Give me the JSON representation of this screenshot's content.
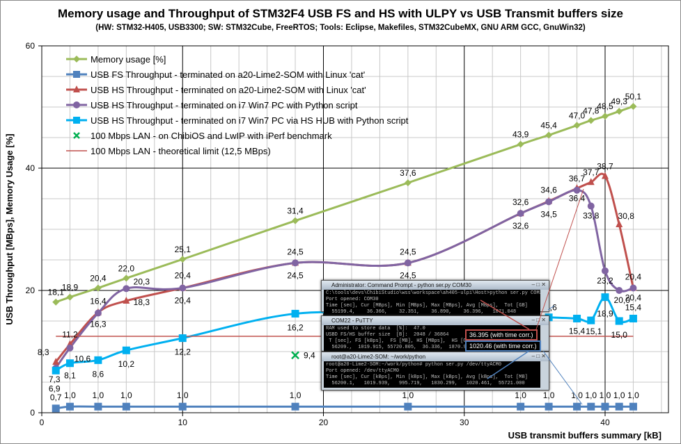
{
  "chart_data": {
    "type": "line",
    "title": "Memory usage and Throughput of STM32F4 USB FS and HS with ULPY vs USB Transmit buffers size",
    "subtitle": "(HW: STM32-H405, USB3300; SW: STM32Cube, FreeRTOS; Tools: Eclipse, Makefiles, STM32CubeMX, GNU ARM GCC, GnuWin32)",
    "xlabel": "USB transmit buffers summary [kB]",
    "ylabel": "USB Throughput [MBps], Memory Usage [%]",
    "xlim": [
      0,
      44.5
    ],
    "ylim": [
      0,
      60
    ],
    "xticks": [
      0,
      10,
      20,
      30,
      40
    ],
    "yticks": [
      0,
      20,
      40,
      60
    ],
    "grid": true,
    "legend_placement": "top-left",
    "x": [
      1,
      2,
      4,
      6,
      10,
      18,
      26,
      34,
      36,
      38,
      39,
      40,
      41,
      42
    ],
    "series": [
      {
        "name": "Memory usage [%]",
        "color": "#9bbb59",
        "marker": "diamond",
        "values": [
          18.1,
          18.9,
          20.4,
          22.0,
          25.1,
          31.4,
          37.6,
          43.9,
          45.4,
          47.0,
          47.8,
          48.5,
          49.3,
          50.1
        ]
      },
      {
        "name": "USB FS Throughput - terminated on a20-Lime2-SOM with Linux 'cat'",
        "color": "#4f81bd",
        "marker": "square",
        "values": [
          0.7,
          1.0,
          1.0,
          1.0,
          1.0,
          1.0,
          1.0,
          1.0,
          1.0,
          1.0,
          1.0,
          1.0,
          1.0,
          1.0
        ]
      },
      {
        "name": "USB HS Throughput - terminated on a20-Lime2-SOM with Linux 'cat'",
        "color": "#c0504d",
        "marker": "triangle",
        "values": [
          8.3,
          11.2,
          16.4,
          18.3,
          20.4,
          24.5,
          24.5,
          32.6,
          34.6,
          36.7,
          37.7,
          38.7,
          30.8,
          20.4
        ]
      },
      {
        "name": "USB HS Throughput - terminated on i7 Win7 PC with Python script",
        "color": "#8064a2",
        "marker": "circle",
        "values": [
          7.3,
          10.6,
          16.3,
          20.3,
          20.4,
          24.5,
          24.5,
          32.6,
          34.5,
          36.4,
          33.8,
          23.2,
          20.0,
          20.4
        ]
      },
      {
        "name": "USB HS Throughput - terminated on i7 Win7 PC via HS HUB with Python script",
        "color": "#00b0f0",
        "marker": "square",
        "values": [
          6.9,
          8.1,
          8.6,
          10.2,
          12.2,
          16.2,
          16.0,
          15.7,
          15.6,
          15.4,
          15.1,
          18.9,
          15.0,
          15.4
        ]
      },
      {
        "name": "100 Mbps LAN - on ChibiOS and LwIP with iPerf benchmark",
        "color": "#00b050",
        "marker": "x",
        "points": [
          {
            "x": 18,
            "y": 9.4
          }
        ]
      },
      {
        "name": "100 Mbps LAN - theoretical limit (12,5 MBps)",
        "color": "#c0504d",
        "marker": "none",
        "points": [
          {
            "x": 1,
            "y": 12.5
          },
          {
            "x": 42,
            "y": 12.5
          }
        ]
      }
    ]
  },
  "inset": {
    "win1": {
      "title": "Administrator: Command Prompt - python  ser.py COM30",
      "lines": [
        "C:\\tools\\devs\\ChibiStudio\\wss\\workspace\\ah405-ulpi\\Host>python ser.py COM30",
        "Port opened: COM30",
        "Time [sec], Cur [MBps], Min [MBps], Max [MBps], Avg [MBps],  Tot [GB]",
        "  55199.4,    36.366,    32.351,    36.890,    36.396,   1871.048"
      ]
    },
    "win2": {
      "title": "COM22 - PuTTY",
      "lines": [
        "RAM used to store data  [%]:  47.0",
        "USBD FS/HS buffer size  [B]:  2048 / 36864",
        " T [sec], FS [kBps],  FS [MB], HS [MBps],  HS [GB]",
        "  56209.,  1019.915, 55720.805,  36.336,  1870.992"
      ]
    },
    "win3": {
      "title": "root@a20-Lime2-SOM: ~/work/python",
      "lines": [
        "root@a20-Lime2-SOM:~/work/python# python ser.py /dev/ttyACM0",
        "Port opened: /dev/ttyACM0",
        "Time [sec], Cur [kBps], Min [kBps], Max [kBps], Avg [kBps],  Tot [MB]",
        "  56200.1,   1019.939,   995.719,   1030.299,   1020.461,  55721.000"
      ]
    },
    "callout_hs": "36.395  (with time corr.)",
    "callout_fs": "1020.46  (with time corr.)",
    "win_buttons": "–  □  ✕"
  }
}
